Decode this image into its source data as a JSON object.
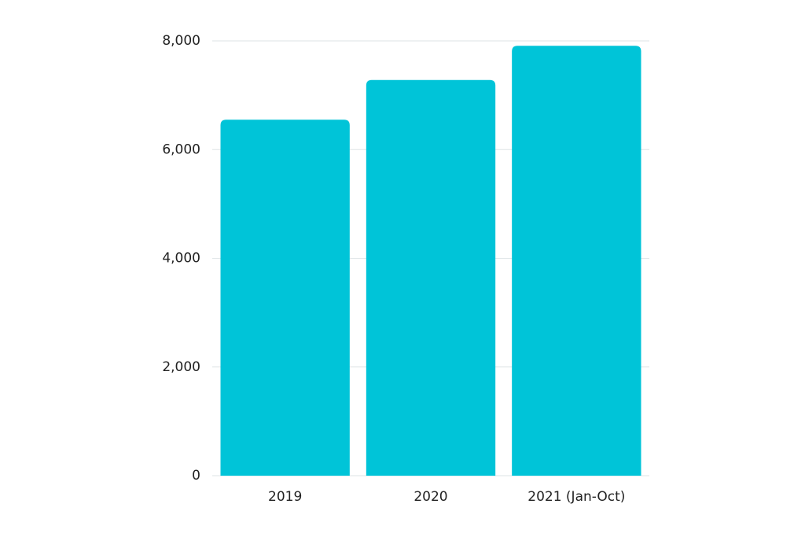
{
  "chart_data": {
    "type": "bar",
    "categories": [
      "2019",
      "2020",
      "2021 (Jan-Oct)"
    ],
    "values": [
      6550,
      7280,
      7910
    ],
    "color": "#00c4d8",
    "ylim": [
      0,
      8000
    ],
    "yticks": [
      0,
      {
        "value": 2000,
        "label": "2,000"
      },
      {
        "value": 4000,
        "label": "4,000"
      },
      {
        "value": 6000,
        "label": "6,000"
      },
      {
        "value": 8000,
        "label": "8,000"
      }
    ],
    "grid": true
  }
}
